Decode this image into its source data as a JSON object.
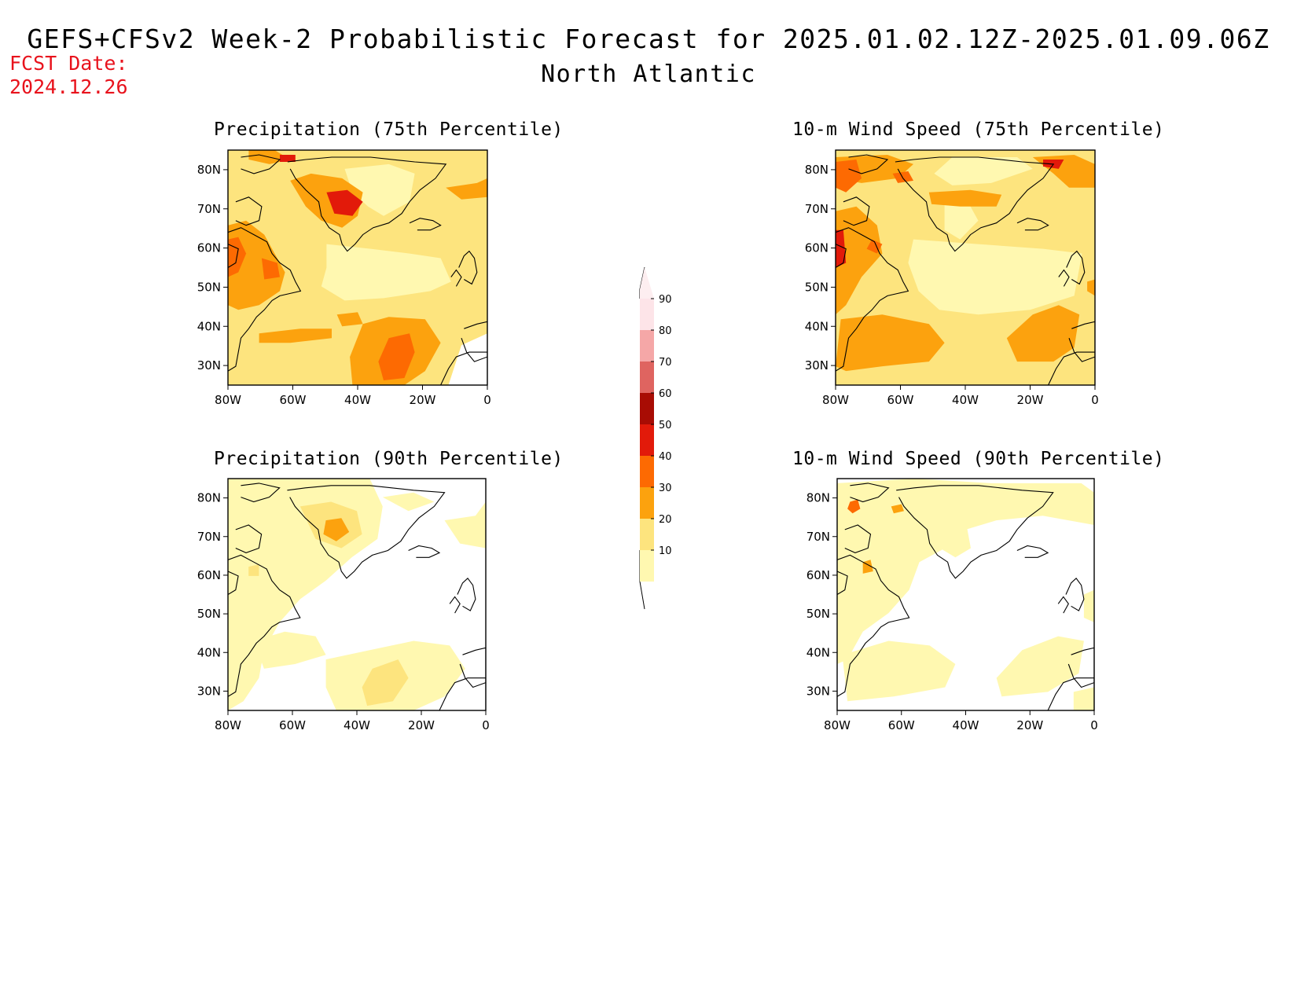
{
  "fcst_date": {
    "label": "FCST Date:",
    "value": "2024.12.26"
  },
  "title": "GEFS+CFSv2 Week-2 Probabilistic Forecast for 2025.01.02.12Z-2025.01.09.06Z",
  "region": "North Atlantic",
  "lon_ticks": [
    "80W",
    "60W",
    "40W",
    "20W",
    "0"
  ],
  "lat_ticks": [
    "80N",
    "70N",
    "60N",
    "50N",
    "40N",
    "30N"
  ],
  "panels": [
    {
      "id": "precip-75",
      "title": "Precipitation (75th Percentile)"
    },
    {
      "id": "wind-75",
      "title": "10-m Wind Speed (75th Percentile)"
    },
    {
      "id": "precip-90",
      "title": "Precipitation (90th Percentile)"
    },
    {
      "id": "wind-90",
      "title": "10-m Wind Speed (90th Percentile)"
    }
  ],
  "colorbar": {
    "levels": [
      "10",
      "20",
      "30",
      "40",
      "50",
      "60",
      "70",
      "80",
      "90"
    ],
    "colors": [
      "#fff8b0",
      "#fde47e",
      "#fca20e",
      "#fd6a02",
      "#e21a0a",
      "#a80c04",
      "#df6460",
      "#f5a7a7",
      "#fde4e8"
    ]
  },
  "colors": {
    "fcst_date": "#e8121c"
  }
}
